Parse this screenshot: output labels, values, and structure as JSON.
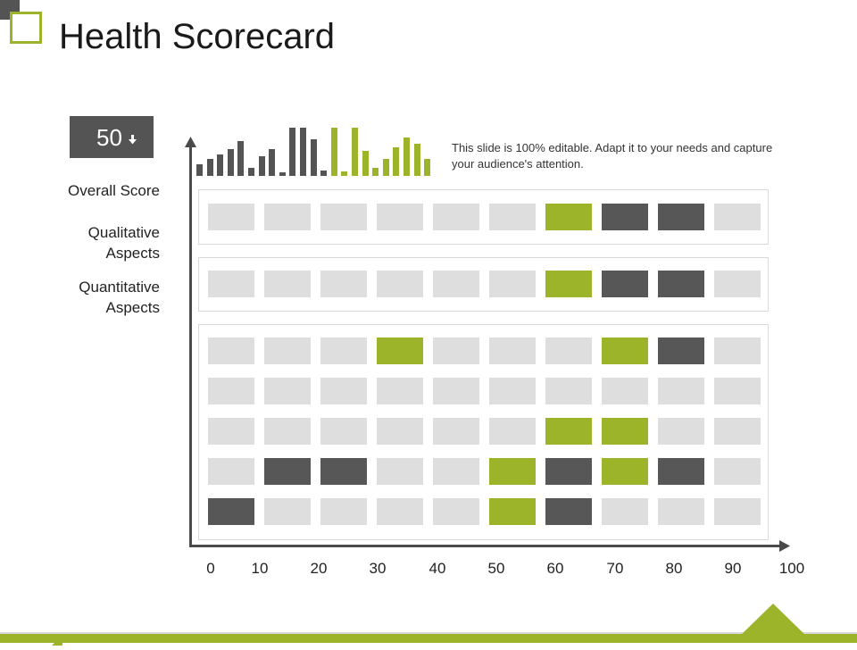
{
  "header": {
    "title": "Health Scorecard"
  },
  "score": {
    "value": "50",
    "arrow_icon": "arrow-down-icon"
  },
  "labels": {
    "overall": "Overall Score",
    "qualitative_line1": "Qualitative",
    "qualitative_line2": "Aspects",
    "quantitative_line1": "Quantitative",
    "quantitative_line2": "Aspects"
  },
  "note": "This slide is 100% editable. Adapt it to your needs and capture your audience's attention.",
  "x_axis": {
    "ticks": [
      "0",
      "10",
      "20",
      "30",
      "40",
      "50",
      "60",
      "70",
      "80",
      "90",
      "100"
    ]
  },
  "mini_bars": [
    {
      "v": 12,
      "c": "dark"
    },
    {
      "v": 18,
      "c": "dark"
    },
    {
      "v": 22,
      "c": "dark"
    },
    {
      "v": 28,
      "c": "dark"
    },
    {
      "v": 36,
      "c": "dark"
    },
    {
      "v": 8,
      "c": "dark"
    },
    {
      "v": 20,
      "c": "dark"
    },
    {
      "v": 28,
      "c": "dark"
    },
    {
      "v": 4,
      "c": "dark"
    },
    {
      "v": 50,
      "c": "dark"
    },
    {
      "v": 50,
      "c": "dark"
    },
    {
      "v": 38,
      "c": "dark"
    },
    {
      "v": 6,
      "c": "dark"
    },
    {
      "v": 50,
      "c": "green"
    },
    {
      "v": 5,
      "c": "green"
    },
    {
      "v": 50,
      "c": "green"
    },
    {
      "v": 26,
      "c": "green"
    },
    {
      "v": 8,
      "c": "green"
    },
    {
      "v": 18,
      "c": "green"
    },
    {
      "v": 30,
      "c": "green"
    },
    {
      "v": 40,
      "c": "green"
    },
    {
      "v": 33,
      "c": "green"
    },
    {
      "v": 18,
      "c": "green"
    }
  ],
  "grid": {
    "overall": [
      [
        0,
        0,
        0,
        0,
        0,
        0,
        1,
        2,
        2,
        0
      ]
    ],
    "qualitative": [
      [
        0,
        0,
        0,
        0,
        0,
        0,
        1,
        2,
        2,
        0
      ]
    ],
    "quantitative": [
      [
        0,
        0,
        0,
        1,
        0,
        0,
        0,
        1,
        2,
        0
      ],
      [
        0,
        0,
        0,
        0,
        0,
        0,
        0,
        0,
        0,
        0
      ],
      [
        0,
        0,
        0,
        0,
        0,
        0,
        1,
        1,
        0,
        0
      ],
      [
        0,
        2,
        2,
        0,
        0,
        1,
        2,
        1,
        2,
        0
      ],
      [
        2,
        0,
        0,
        0,
        0,
        1,
        2,
        0,
        0,
        0
      ]
    ]
  },
  "colors": {
    "green": "#9bb42a",
    "dark": "#575757",
    "light": "#dedede"
  }
}
